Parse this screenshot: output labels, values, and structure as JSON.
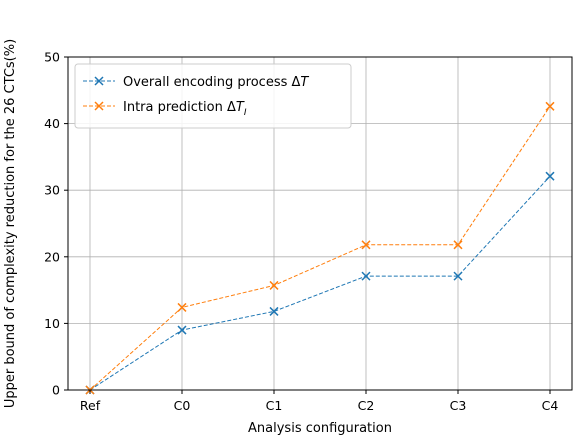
{
  "chart_data": {
    "type": "line",
    "categories": [
      "Ref",
      "C0",
      "C1",
      "C2",
      "C3",
      "C4"
    ],
    "series": [
      {
        "name": "Overall encoding process ΔT",
        "name_parts": {
          "text": "Overall encoding process Δ",
          "var": "T",
          "sub": ""
        },
        "values": [
          0,
          9,
          11.8,
          17.1,
          17.1,
          32.1
        ],
        "color": "#1f77b4"
      },
      {
        "name": "Intra prediction ΔTI",
        "name_parts": {
          "text": "Intra prediction Δ",
          "var": "T",
          "sub": "I"
        },
        "values": [
          0,
          12.4,
          15.7,
          21.8,
          21.8,
          42.6
        ],
        "color": "#ff7f0e"
      }
    ],
    "xlabel": "Analysis configuration",
    "ylabel": "Upper bound of complexity reduction for the 26 CTCs(%)",
    "ylim": [
      0,
      50
    ],
    "yticks": [
      0,
      10,
      20,
      30,
      40,
      50
    ],
    "grid": true,
    "marker": "x",
    "linestyle": "dashed",
    "legend_position": "top-left"
  }
}
